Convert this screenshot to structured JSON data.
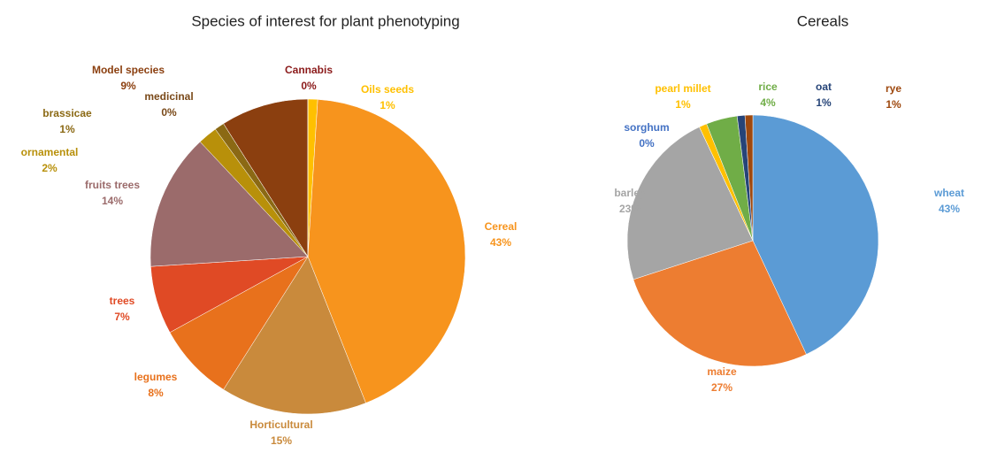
{
  "chart_data": [
    {
      "type": "pie",
      "title": "Species of interest for plant phenotyping",
      "categories": [
        "Oils seeds",
        "Cereal",
        "Horticultural",
        "legumes",
        "trees",
        "fruits trees",
        "ornamental",
        "brassicae",
        "medicinal",
        "Model species",
        "Cannabis"
      ],
      "values": [
        1,
        43,
        15,
        8,
        7,
        14,
        2,
        1,
        0,
        9,
        0
      ],
      "value_labels": [
        "1%",
        "43%",
        "15%",
        "8%",
        "7%",
        "14%",
        "2%",
        "1%",
        "0%",
        "9%",
        "0%"
      ],
      "colors": [
        "#ffc000",
        "#f7941d",
        "#c98a3c",
        "#e8711c",
        "#e04a25",
        "#9b6b6b",
        "#b8900a",
        "#8b6914",
        "#7a4a1a",
        "#8b3f0f",
        "#8b1a1a"
      ]
    },
    {
      "type": "pie",
      "title": "Cereals",
      "categories": [
        "wheat",
        "maize",
        "barley",
        "sorghum",
        "pearl millet",
        "rice",
        "oat",
        "rye"
      ],
      "values": [
        43,
        27,
        23,
        0,
        1,
        4,
        1,
        1
      ],
      "value_labels": [
        "43%",
        "27%",
        "23%",
        "0%",
        "1%",
        "4%",
        "1%",
        "1%"
      ],
      "colors": [
        "#5b9bd5",
        "#ed7d31",
        "#a5a5a5",
        "#4472c4",
        "#ffc000",
        "#70ad47",
        "#264478",
        "#9e480e"
      ]
    }
  ]
}
